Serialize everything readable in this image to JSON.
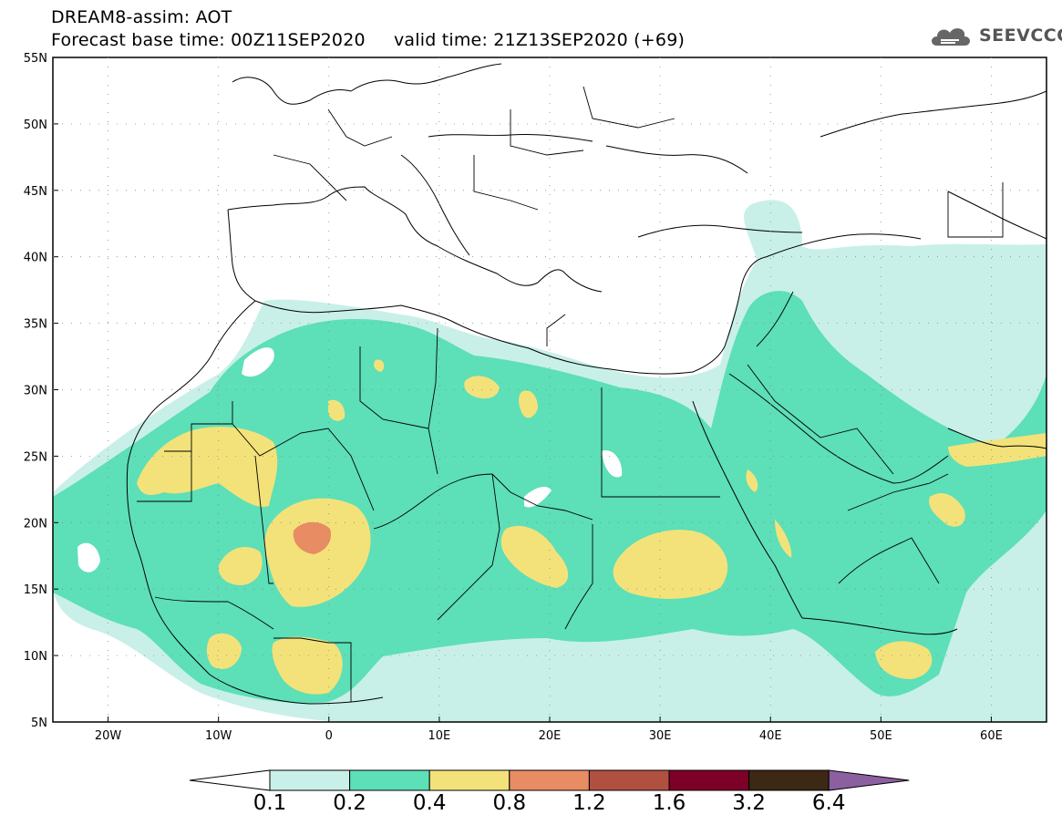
{
  "header": {
    "title_line1": "DREAM8-assim: AOT",
    "title_line2": "Forecast base time: 00Z11SEP2020     valid time: 21Z13SEP2020 (+69)",
    "logo_text": "SEEVCCC"
  },
  "map": {
    "variable": "AOT",
    "projection": "lat-lon",
    "lon_range": [
      -25,
      65
    ],
    "lat_range": [
      5,
      55
    ],
    "lat_ticks": [
      "55N",
      "50N",
      "45N",
      "40N",
      "35N",
      "30N",
      "25N",
      "20N",
      "15N",
      "10N",
      "5N"
    ],
    "lon_ticks": [
      "20W",
      "10W",
      "0",
      "10E",
      "20E",
      "30E",
      "40E",
      "50E",
      "60E"
    ],
    "colors": {
      "c01_02": "#c8f0e8",
      "c02_04": "#5ddfb8",
      "c04_08": "#f3e27a",
      "c08_12": "#e88c64",
      "c12_16": "#b05040",
      "c16_32": "#7c0028",
      "c32_64": "#3c2814",
      "c64_plus": "#8c60a0",
      "coastline": "#000000"
    }
  },
  "colorbar": {
    "labels": [
      "0.1",
      "0.2",
      "0.4",
      "0.8",
      "1.2",
      "1.6",
      "3.2",
      "6.4"
    ],
    "colors": [
      "#ffffff",
      "#c8f0e8",
      "#5ddfb8",
      "#f3e27a",
      "#e88c64",
      "#b05040",
      "#7c0028",
      "#3c2814",
      "#8c60a0"
    ]
  }
}
